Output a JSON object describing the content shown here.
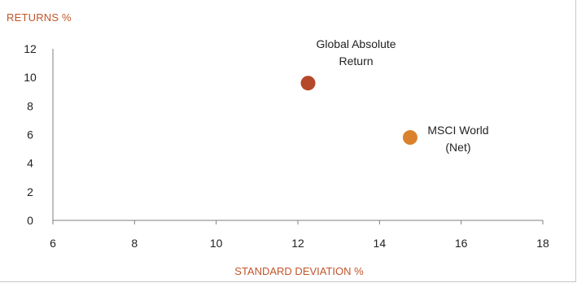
{
  "chart_data": {
    "type": "scatter",
    "ylabel": "RETURNS %",
    "xlabel": "STANDARD DEVIATION %",
    "xlim": [
      6,
      18
    ],
    "ylim": [
      0,
      12
    ],
    "x_ticks": [
      "6",
      "8",
      "10",
      "12",
      "14",
      "16",
      "18"
    ],
    "y_ticks": [
      "0",
      "2",
      "4",
      "6",
      "8",
      "10",
      "12"
    ],
    "grid": false,
    "series": [
      {
        "name_lines": [
          "Global Absolute",
          "Return"
        ],
        "x": 12.25,
        "y": 9.6,
        "color": "#b5482a"
      },
      {
        "name_lines": [
          "MSCI World",
          "(Net)"
        ],
        "x": 14.75,
        "y": 5.8,
        "color": "#d9822b"
      }
    ]
  },
  "colors": {
    "axis_title": "#c0552b",
    "axis_line": "#7f7f7f",
    "tick_text": "#222222"
  }
}
